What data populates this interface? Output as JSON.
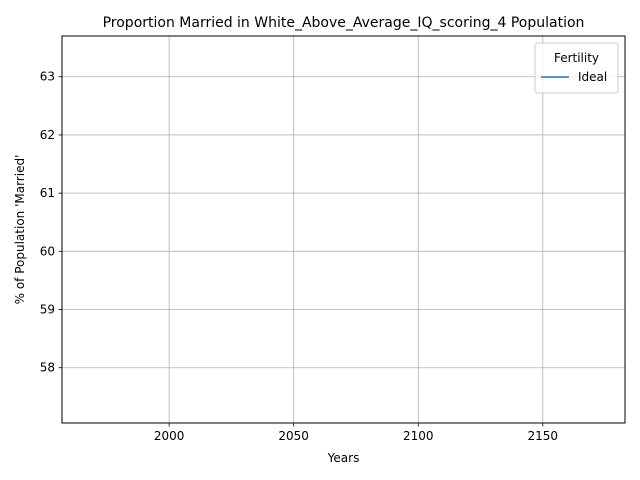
{
  "chart_data": {
    "type": "line",
    "title": "Proportion Married in White_Above_Average_IQ_scoring_4 Population",
    "xlabel": "Years",
    "ylabel": "% of Population 'Married'",
    "xlim": [
      1957,
      2183
    ],
    "ylim": [
      57.05,
      63.7
    ],
    "xticks": [
      2000,
      2050,
      2100,
      2150
    ],
    "yticks": [
      58,
      59,
      60,
      61,
      62,
      63
    ],
    "grid": true,
    "legend": {
      "title": "Fertility",
      "placement": "top-right"
    },
    "series": [
      {
        "name": "Ideal",
        "color": "#1f77b4",
        "x": [],
        "y": []
      }
    ]
  }
}
